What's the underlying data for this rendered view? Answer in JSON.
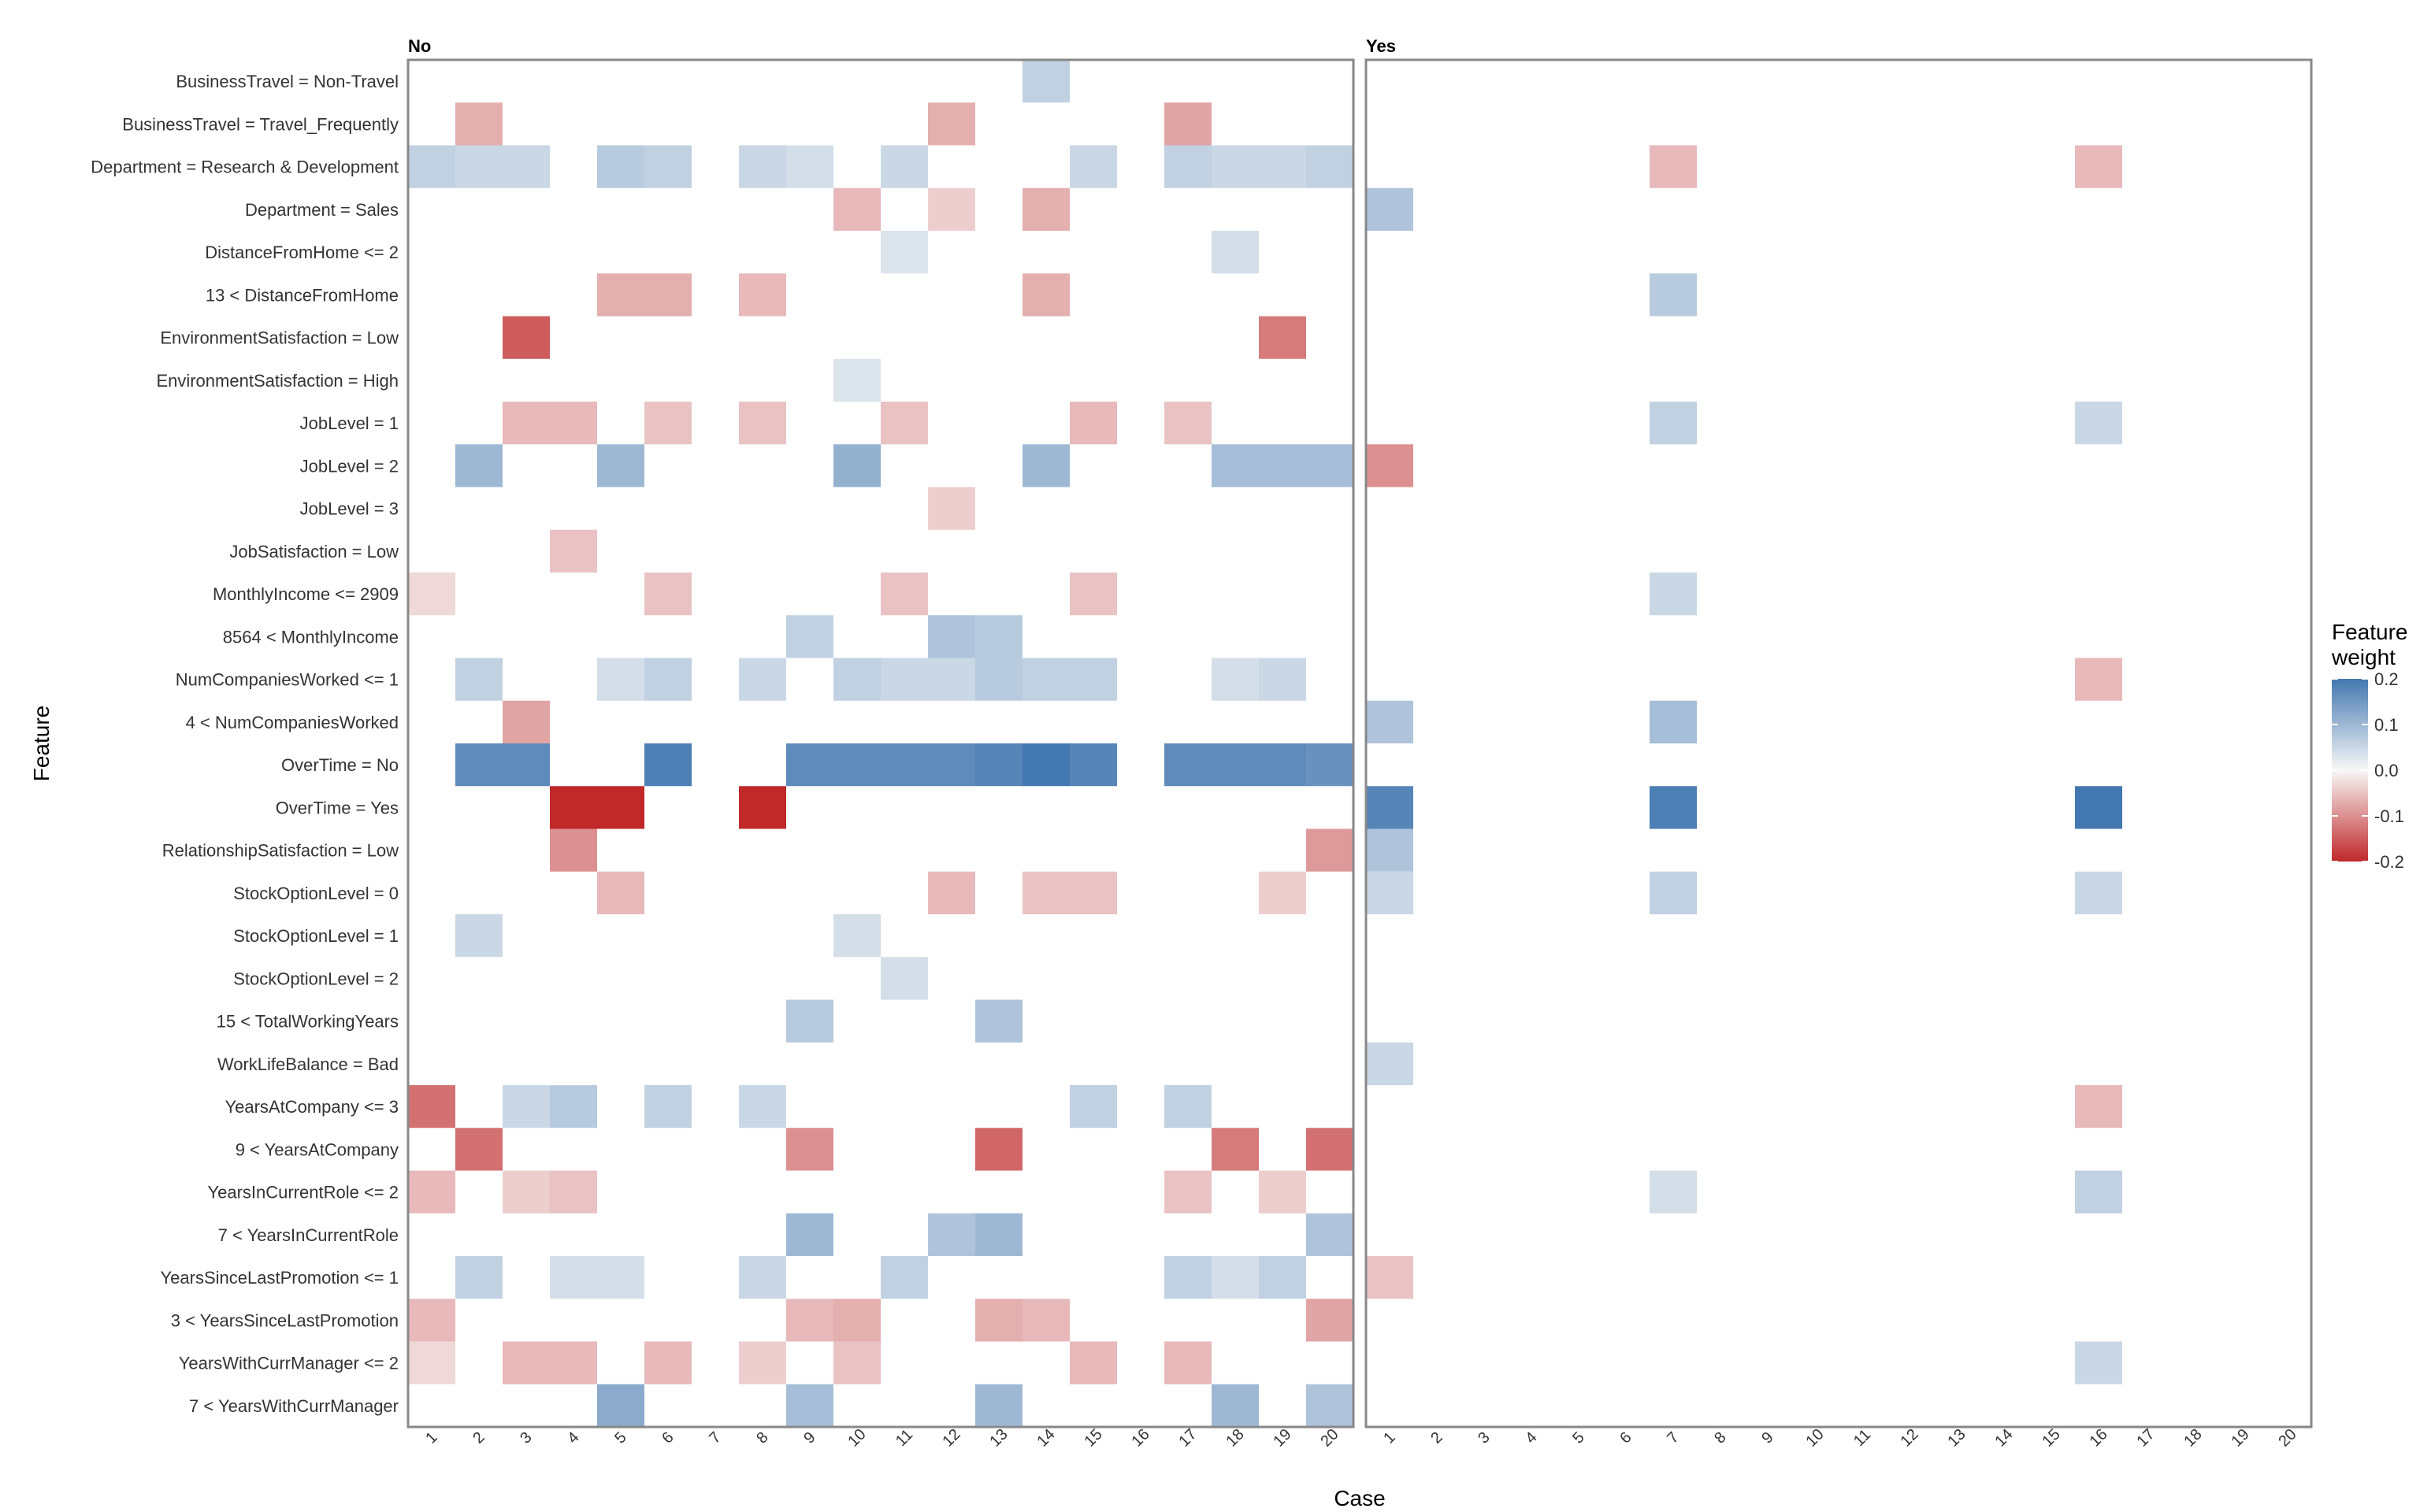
{
  "chart_data": {
    "type": "heatmap",
    "facets": [
      "No",
      "Yes"
    ],
    "xlabel": "Case",
    "ylabel": "Feature",
    "x_categories": [
      "1",
      "2",
      "3",
      "4",
      "5",
      "6",
      "7",
      "8",
      "9",
      "10",
      "11",
      "12",
      "13",
      "14",
      "15",
      "16",
      "17",
      "18",
      "19",
      "20"
    ],
    "y_categories": [
      "BusinessTravel = Non-Travel",
      "BusinessTravel = Travel_Frequently",
      "Department = Research & Development",
      "Department = Sales",
      "DistanceFromHome <= 2",
      "13 < DistanceFromHome",
      "EnvironmentSatisfaction = Low",
      "EnvironmentSatisfaction = High",
      "JobLevel = 1",
      "JobLevel = 2",
      "JobLevel = 3",
      "JobSatisfaction = Low",
      "MonthlyIncome <= 2909",
      "8564 < MonthlyIncome",
      "NumCompaniesWorked <= 1",
      "4 < NumCompaniesWorked",
      "OverTime = No",
      "OverTime = Yes",
      "RelationshipSatisfaction = Low",
      "StockOptionLevel = 0",
      "StockOptionLevel = 1",
      "StockOptionLevel = 2",
      "15 < TotalWorkingYears",
      "WorkLifeBalance = Bad",
      "YearsAtCompany <= 3",
      "9 < YearsAtCompany",
      "YearsInCurrentRole <= 2",
      "7 < YearsInCurrentRole",
      "YearsSinceLastPromotion <= 1",
      "3 < YearsSinceLastPromotion",
      "YearsWithCurrManager <= 2",
      "7 < YearsWithCurrManager"
    ],
    "legend": {
      "title": "Feature\nweight",
      "position": "right",
      "range": [
        -0.2,
        0.2
      ],
      "ticks": [
        0.2,
        0.1,
        0.0,
        -0.1,
        -0.2
      ],
      "tick_labels": [
        "0.2",
        "0.1",
        "0.0",
        "-0.1",
        "-0.2"
      ],
      "colors": {
        "low": "#c0282a",
        "mid": "#f7f7f7",
        "high": "#4478b0"
      }
    },
    "grid": false,
    "cells": {
      "No": [
        [
          1,
          3,
          0.06
        ],
        [
          1,
          13,
          -0.03
        ],
        [
          1,
          25,
          -0.13
        ],
        [
          1,
          27,
          -0.06
        ],
        [
          1,
          30,
          -0.06
        ],
        [
          1,
          31,
          -0.03
        ],
        [
          2,
          2,
          -0.07
        ],
        [
          2,
          3,
          0.05
        ],
        [
          2,
          10,
          0.1
        ],
        [
          2,
          15,
          0.06
        ],
        [
          2,
          17,
          0.17
        ],
        [
          2,
          21,
          0.05
        ],
        [
          2,
          26,
          -0.13
        ],
        [
          2,
          29,
          0.06
        ],
        [
          3,
          3,
          0.05
        ],
        [
          3,
          7,
          -0.15
        ],
        [
          3,
          9,
          -0.06
        ],
        [
          3,
          16,
          -0.08
        ],
        [
          3,
          17,
          0.17
        ],
        [
          3,
          25,
          0.05
        ],
        [
          3,
          27,
          -0.04
        ],
        [
          3,
          31,
          -0.06
        ],
        [
          4,
          9,
          -0.06
        ],
        [
          4,
          12,
          -0.05
        ],
        [
          4,
          18,
          -0.22
        ],
        [
          4,
          19,
          -0.1
        ],
        [
          4,
          25,
          0.07
        ],
        [
          4,
          27,
          -0.05
        ],
        [
          4,
          29,
          0.04
        ],
        [
          4,
          31,
          -0.06
        ],
        [
          5,
          3,
          0.07
        ],
        [
          5,
          6,
          -0.07
        ],
        [
          5,
          10,
          0.1
        ],
        [
          5,
          15,
          0.04
        ],
        [
          5,
          18,
          -0.22
        ],
        [
          5,
          20,
          -0.06
        ],
        [
          5,
          29,
          0.04
        ],
        [
          5,
          32,
          0.12
        ],
        [
          6,
          3,
          0.06
        ],
        [
          6,
          6,
          -0.07
        ],
        [
          6,
          9,
          -0.05
        ],
        [
          6,
          13,
          -0.05
        ],
        [
          6,
          15,
          0.06
        ],
        [
          6,
          17,
          0.19
        ],
        [
          6,
          25,
          0.06
        ],
        [
          6,
          31,
          -0.06
        ],
        [
          8,
          3,
          0.05
        ],
        [
          8,
          6,
          -0.06
        ],
        [
          8,
          9,
          -0.05
        ],
        [
          8,
          15,
          0.05
        ],
        [
          8,
          18,
          -0.2
        ],
        [
          8,
          25,
          0.05
        ],
        [
          8,
          29,
          0.05
        ],
        [
          8,
          31,
          -0.04
        ],
        [
          9,
          3,
          0.04
        ],
        [
          9,
          14,
          0.06
        ],
        [
          9,
          17,
          0.17
        ],
        [
          9,
          23,
          0.07
        ],
        [
          9,
          26,
          -0.1
        ],
        [
          9,
          28,
          0.1
        ],
        [
          9,
          30,
          -0.06
        ],
        [
          9,
          32,
          0.09
        ],
        [
          10,
          4,
          -0.06
        ],
        [
          10,
          8,
          0.03
        ],
        [
          10,
          10,
          0.11
        ],
        [
          10,
          15,
          0.06
        ],
        [
          10,
          17,
          0.17
        ],
        [
          10,
          21,
          0.04
        ],
        [
          10,
          30,
          -0.07
        ],
        [
          10,
          31,
          -0.05
        ],
        [
          11,
          3,
          0.05
        ],
        [
          11,
          5,
          0.03
        ],
        [
          11,
          9,
          -0.05
        ],
        [
          11,
          13,
          -0.05
        ],
        [
          11,
          15,
          0.05
        ],
        [
          11,
          17,
          0.17
        ],
        [
          11,
          22,
          0.04
        ],
        [
          11,
          29,
          0.06
        ],
        [
          12,
          2,
          -0.07
        ],
        [
          12,
          4,
          -0.04
        ],
        [
          12,
          11,
          -0.04
        ],
        [
          12,
          14,
          0.08
        ],
        [
          12,
          15,
          0.05
        ],
        [
          12,
          17,
          0.17
        ],
        [
          12,
          20,
          -0.06
        ],
        [
          12,
          28,
          0.08
        ],
        [
          13,
          14,
          0.07
        ],
        [
          13,
          15,
          0.07
        ],
        [
          13,
          17,
          0.18
        ],
        [
          13,
          23,
          0.08
        ],
        [
          13,
          26,
          -0.14
        ],
        [
          13,
          28,
          0.1
        ],
        [
          13,
          30,
          -0.07
        ],
        [
          13,
          32,
          0.1
        ],
        [
          14,
          1,
          0.06
        ],
        [
          14,
          4,
          -0.07
        ],
        [
          14,
          6,
          -0.07
        ],
        [
          14,
          10,
          0.1
        ],
        [
          14,
          15,
          0.06
        ],
        [
          14,
          17,
          0.2
        ],
        [
          14,
          20,
          -0.05
        ],
        [
          14,
          30,
          -0.06
        ],
        [
          15,
          3,
          0.05
        ],
        [
          15,
          9,
          -0.06
        ],
        [
          15,
          13,
          -0.05
        ],
        [
          15,
          15,
          0.06
        ],
        [
          15,
          17,
          0.18
        ],
        [
          15,
          20,
          -0.05
        ],
        [
          15,
          25,
          0.06
        ],
        [
          15,
          31,
          -0.06
        ],
        [
          17,
          2,
          -0.08
        ],
        [
          17,
          3,
          0.06
        ],
        [
          17,
          9,
          -0.05
        ],
        [
          17,
          17,
          0.17
        ],
        [
          17,
          25,
          0.06
        ],
        [
          17,
          27,
          -0.05
        ],
        [
          17,
          29,
          0.06
        ],
        [
          17,
          31,
          -0.06
        ],
        [
          18,
          3,
          0.05
        ],
        [
          18,
          5,
          0.04
        ],
        [
          18,
          10,
          0.09
        ],
        [
          18,
          15,
          0.04
        ],
        [
          18,
          17,
          0.17
        ],
        [
          18,
          26,
          -0.12
        ],
        [
          18,
          29,
          0.04
        ],
        [
          18,
          32,
          0.1
        ],
        [
          19,
          3,
          0.05
        ],
        [
          19,
          7,
          -0.12
        ],
        [
          19,
          10,
          0.09
        ],
        [
          19,
          15,
          0.05
        ],
        [
          19,
          17,
          0.17
        ],
        [
          19,
          20,
          -0.04
        ],
        [
          19,
          27,
          -0.04
        ],
        [
          19,
          29,
          0.06
        ],
        [
          20,
          3,
          0.06
        ],
        [
          20,
          10,
          0.09
        ],
        [
          20,
          17,
          0.16
        ],
        [
          20,
          19,
          -0.09
        ],
        [
          20,
          26,
          -0.13
        ],
        [
          20,
          28,
          0.08
        ],
        [
          20,
          30,
          -0.08
        ],
        [
          20,
          32,
          0.08
        ]
      ],
      "Yes": [
        [
          1,
          4,
          0.08
        ],
        [
          1,
          10,
          -0.1
        ],
        [
          1,
          16,
          0.08
        ],
        [
          1,
          18,
          0.18
        ],
        [
          1,
          19,
          0.08
        ],
        [
          1,
          20,
          0.05
        ],
        [
          1,
          24,
          0.05
        ],
        [
          1,
          29,
          -0.05
        ],
        [
          7,
          3,
          -0.06
        ],
        [
          7,
          6,
          0.07
        ],
        [
          7,
          9,
          0.06
        ],
        [
          7,
          13,
          0.05
        ],
        [
          7,
          16,
          0.09
        ],
        [
          7,
          18,
          0.19
        ],
        [
          7,
          20,
          0.06
        ],
        [
          7,
          27,
          0.04
        ],
        [
          16,
          3,
          -0.06
        ],
        [
          16,
          9,
          0.05
        ],
        [
          16,
          15,
          -0.06
        ],
        [
          16,
          18,
          0.2
        ],
        [
          16,
          20,
          0.05
        ],
        [
          16,
          25,
          -0.06
        ],
        [
          16,
          27,
          0.06
        ],
        [
          16,
          31,
          0.05
        ]
      ]
    }
  }
}
